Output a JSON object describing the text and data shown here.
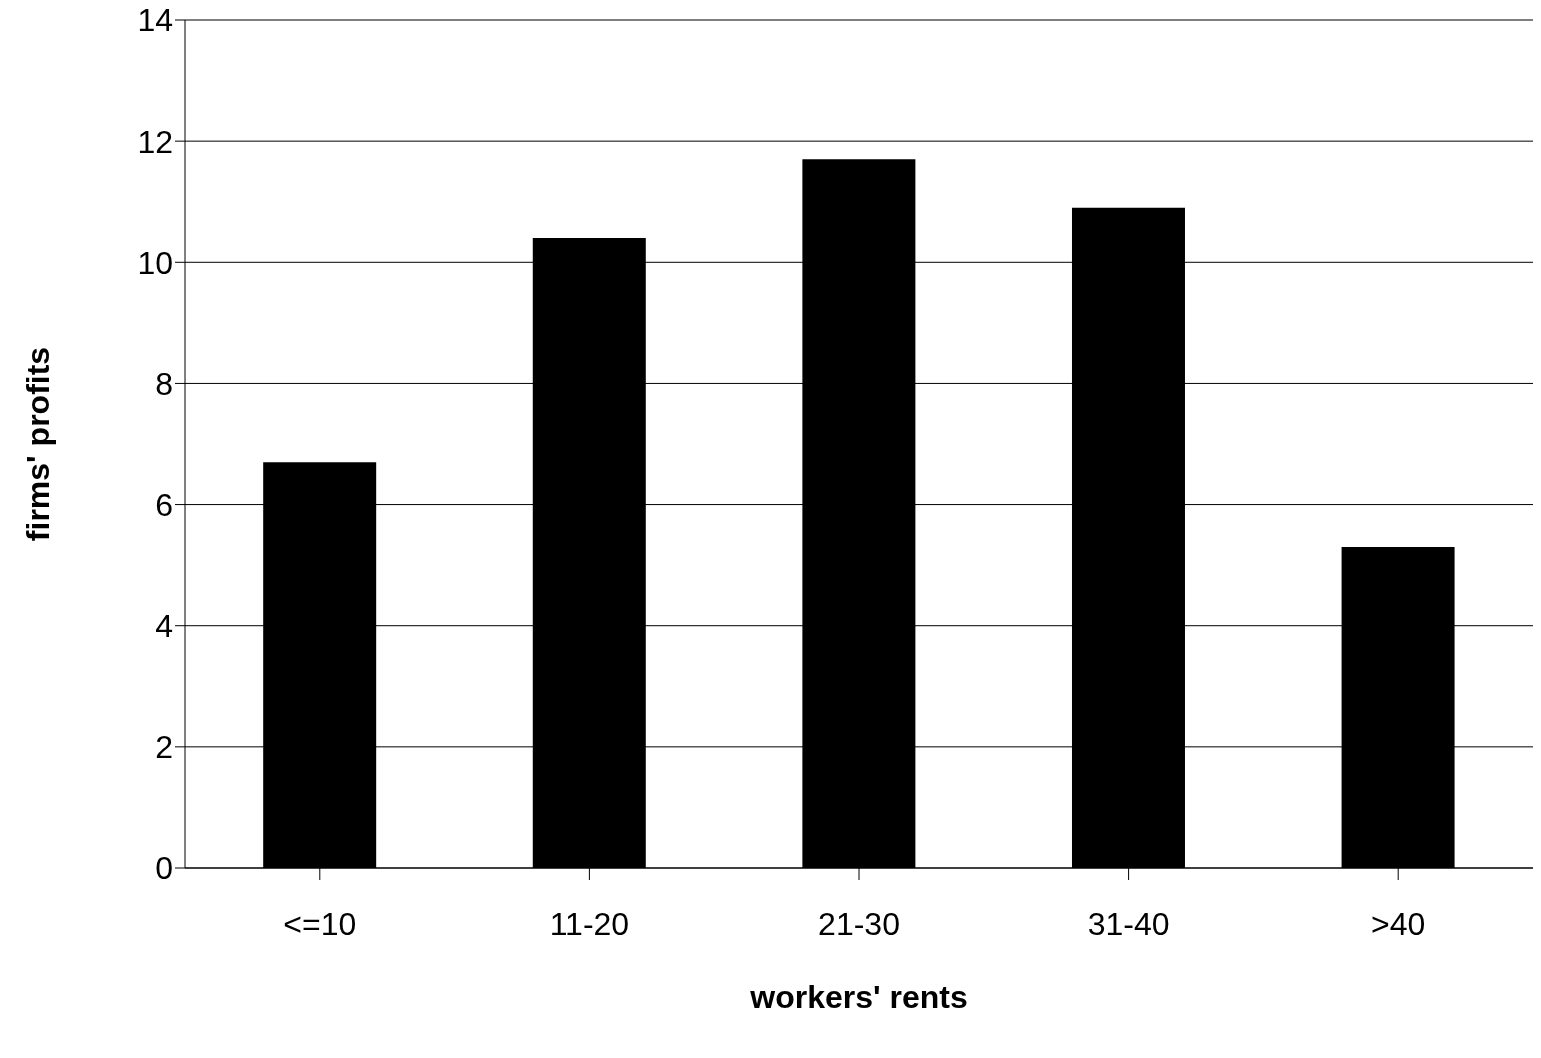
{
  "chart_data": {
    "type": "bar",
    "xlabel": "workers' rents",
    "ylabel": "firms' profits",
    "categories": [
      "<=10",
      "11-20",
      "21-30",
      "31-40",
      ">40"
    ],
    "values": [
      6.7,
      10.4,
      11.7,
      10.9,
      5.3
    ],
    "color": "#000000",
    "ylim": [
      0,
      14
    ],
    "yticks": [
      0,
      2,
      4,
      6,
      8,
      10,
      12,
      14
    ],
    "grid": "y"
  }
}
